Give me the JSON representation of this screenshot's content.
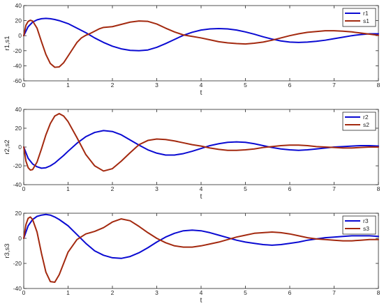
{
  "colors": {
    "r_series": "#0a0ad2",
    "s_series": "#a3290f",
    "axes": "#262626",
    "background": "#ffffff"
  },
  "chart_data": [
    {
      "type": "line",
      "xlabel": "t",
      "ylabel": "r1,s1",
      "xlim": [
        0,
        8
      ],
      "ylim": [
        -60,
        40
      ],
      "xticks": [
        0,
        1,
        2,
        3,
        4,
        5,
        6,
        7,
        8
      ],
      "yticks": [
        -60,
        -40,
        -20,
        0,
        20,
        40
      ],
      "grid": false,
      "legend_position": "top-right",
      "series": [
        {
          "name": "r1",
          "color": "#0a0ad2",
          "x": [
            0,
            0.1,
            0.2,
            0.3,
            0.4,
            0.5,
            0.6,
            0.7,
            0.8,
            1.0,
            1.2,
            1.4,
            1.6,
            1.8,
            2.0,
            2.2,
            2.4,
            2.6,
            2.8,
            3.0,
            3.2,
            3.4,
            3.6,
            3.8,
            4.0,
            4.2,
            4.4,
            4.6,
            4.8,
            5.0,
            5.2,
            5.4,
            5.6,
            5.8,
            6.0,
            6.2,
            6.4,
            6.6,
            6.8,
            7.0,
            7.2,
            7.4,
            7.6,
            7.8,
            8.0
          ],
          "y": [
            0,
            12,
            18,
            21,
            22.5,
            23,
            22.5,
            21.5,
            20,
            16,
            10,
            4,
            -3,
            -9,
            -14,
            -17.5,
            -19.5,
            -20,
            -19,
            -15.5,
            -10.5,
            -5,
            0.5,
            4.5,
            7.5,
            9,
            9.5,
            9,
            7.5,
            5,
            2,
            -1.5,
            -4.5,
            -7,
            -8.5,
            -9,
            -8.5,
            -7.5,
            -6,
            -4,
            -2,
            0,
            1.5,
            2.5,
            2.5
          ]
        },
        {
          "name": "s1",
          "color": "#a3290f",
          "x": [
            0,
            0.05,
            0.1,
            0.15,
            0.2,
            0.3,
            0.4,
            0.5,
            0.6,
            0.7,
            0.8,
            0.9,
            1.0,
            1.1,
            1.2,
            1.3,
            1.4,
            1.5,
            1.6,
            1.7,
            1.8,
            2.0,
            2.2,
            2.4,
            2.6,
            2.8,
            3.0,
            3.2,
            3.4,
            3.6,
            3.8,
            4.0,
            4.2,
            4.4,
            4.6,
            4.8,
            5.0,
            5.2,
            5.4,
            5.6,
            5.8,
            6.0,
            6.2,
            6.4,
            6.6,
            6.8,
            7.0,
            7.2,
            7.4,
            7.6,
            7.8,
            8.0
          ],
          "y": [
            0,
            14,
            19,
            20.5,
            19.5,
            10,
            -8,
            -25,
            -37,
            -42,
            -41.5,
            -36,
            -27,
            -18,
            -9,
            -3,
            0.5,
            3,
            6,
            9,
            11,
            12,
            15,
            18,
            19.5,
            19,
            15.5,
            10,
            5,
            1,
            -1,
            -3,
            -5.5,
            -8,
            -9.5,
            -10.5,
            -11,
            -10,
            -8.5,
            -6,
            -3,
            0,
            2.5,
            4.5,
            5.5,
            6.5,
            6.5,
            6,
            5,
            3.5,
            2,
            0.5
          ]
        }
      ]
    },
    {
      "type": "line",
      "xlabel": "t",
      "ylabel": "r2,s2",
      "xlim": [
        0,
        8
      ],
      "ylim": [
        -40,
        40
      ],
      "xticks": [
        0,
        1,
        2,
        3,
        4,
        5,
        6,
        7,
        8
      ],
      "yticks": [
        -40,
        -20,
        0,
        20,
        40
      ],
      "grid": false,
      "legend_position": "top-right",
      "series": [
        {
          "name": "r2",
          "color": "#0a0ad2",
          "x": [
            0,
            0.1,
            0.2,
            0.3,
            0.4,
            0.5,
            0.6,
            0.7,
            0.8,
            0.9,
            1.0,
            1.2,
            1.4,
            1.6,
            1.8,
            2.0,
            2.2,
            2.4,
            2.6,
            2.8,
            3.0,
            3.2,
            3.4,
            3.6,
            3.8,
            4.0,
            4.2,
            4.4,
            4.6,
            4.8,
            5.0,
            5.2,
            5.4,
            5.6,
            5.8,
            6.0,
            6.2,
            6.4,
            6.6,
            6.8,
            7.0,
            7.2,
            7.4,
            7.6,
            7.8,
            8.0
          ],
          "y": [
            0,
            -12,
            -18,
            -21,
            -22.5,
            -22,
            -20,
            -17,
            -13,
            -9,
            -4.5,
            4,
            11,
            15.5,
            17.5,
            16.5,
            13,
            7.5,
            2,
            -3,
            -6.5,
            -8.5,
            -8.5,
            -7,
            -4.5,
            -1.5,
            1.5,
            3.5,
            5,
            5.5,
            5,
            3.5,
            1.5,
            -0.5,
            -2,
            -3,
            -3.5,
            -3,
            -2,
            -1,
            0,
            0.5,
            1,
            1.5,
            1.5,
            1
          ]
        },
        {
          "name": "s2",
          "color": "#a3290f",
          "x": [
            0,
            0.05,
            0.1,
            0.15,
            0.2,
            0.3,
            0.4,
            0.5,
            0.6,
            0.7,
            0.8,
            0.9,
            1.0,
            1.2,
            1.4,
            1.6,
            1.8,
            2.0,
            2.2,
            2.4,
            2.6,
            2.8,
            3.0,
            3.2,
            3.4,
            3.6,
            3.8,
            4.0,
            4.2,
            4.4,
            4.6,
            4.8,
            5.0,
            5.2,
            5.4,
            5.6,
            5.8,
            6.0,
            6.2,
            6.4,
            6.6,
            6.8,
            7.0,
            7.2,
            7.4,
            7.6,
            7.8,
            8.0
          ],
          "y": [
            0,
            -15,
            -22,
            -24.5,
            -24,
            -16,
            -2,
            13,
            25,
            33,
            35.5,
            33,
            27,
            10,
            -8,
            -20,
            -25.5,
            -23,
            -15,
            -6,
            2.5,
            7,
            8.5,
            8,
            6.5,
            4.5,
            2.5,
            1,
            -1,
            -2.5,
            -3.5,
            -3.5,
            -3,
            -2,
            -0.5,
            0.5,
            1.5,
            2,
            2,
            1.5,
            0.5,
            0,
            -0.5,
            -1,
            -1,
            -0.5,
            0,
            0
          ]
        }
      ]
    },
    {
      "type": "line",
      "xlabel": "t",
      "ylabel": "r3,s3",
      "xlim": [
        0,
        8
      ],
      "ylim": [
        -40,
        20
      ],
      "xticks": [
        0,
        1,
        2,
        3,
        4,
        5,
        6,
        7,
        8
      ],
      "yticks": [
        -40,
        -20,
        0,
        20
      ],
      "grid": false,
      "legend_position": "top-right",
      "series": [
        {
          "name": "r3",
          "color": "#0a0ad2",
          "x": [
            0,
            0.1,
            0.2,
            0.3,
            0.4,
            0.5,
            0.6,
            0.7,
            0.8,
            1.0,
            1.2,
            1.4,
            1.6,
            1.8,
            2.0,
            2.2,
            2.4,
            2.6,
            2.8,
            3.0,
            3.2,
            3.4,
            3.6,
            3.8,
            4.0,
            4.2,
            4.4,
            4.6,
            4.8,
            5.0,
            5.2,
            5.4,
            5.6,
            5.8,
            6.0,
            6.2,
            6.4,
            6.6,
            6.8,
            7.0,
            7.2,
            7.4,
            7.6,
            7.8,
            8.0
          ],
          "y": [
            0,
            10,
            15,
            17.5,
            18.5,
            19,
            18.5,
            17,
            15,
            10,
            3,
            -4,
            -10,
            -13.5,
            -15.5,
            -16,
            -14.5,
            -11.5,
            -7.5,
            -3,
            1,
            4,
            6,
            6.5,
            6,
            4.5,
            2.5,
            0.5,
            -1.5,
            -3,
            -4,
            -5,
            -5.5,
            -5,
            -4,
            -3,
            -1.5,
            -0.5,
            0.5,
            1,
            1.5,
            2,
            2,
            2,
            1.5
          ]
        },
        {
          "name": "s3",
          "color": "#a3290f",
          "x": [
            0,
            0.05,
            0.1,
            0.15,
            0.2,
            0.3,
            0.4,
            0.5,
            0.6,
            0.7,
            0.8,
            0.9,
            1.0,
            1.2,
            1.4,
            1.6,
            1.8,
            2.0,
            2.2,
            2.4,
            2.6,
            2.8,
            3.0,
            3.2,
            3.4,
            3.6,
            3.8,
            4.0,
            4.2,
            4.4,
            4.6,
            4.8,
            5.0,
            5.2,
            5.4,
            5.6,
            5.8,
            6.0,
            6.2,
            6.4,
            6.6,
            6.8,
            7.0,
            7.2,
            7.4,
            7.6,
            7.8,
            8.0
          ],
          "y": [
            0,
            11,
            16,
            17,
            15,
            5,
            -12,
            -27,
            -34.5,
            -35,
            -29,
            -20,
            -11,
            -1,
            3.5,
            5.5,
            8.5,
            13,
            15.5,
            14,
            9.5,
            4.5,
            0,
            -3.5,
            -6,
            -7,
            -7,
            -6,
            -4.5,
            -3,
            -1,
            1,
            2.5,
            4,
            4.5,
            5,
            4.5,
            3.5,
            2,
            0.5,
            -0.5,
            -1,
            -1.5,
            -2,
            -2,
            -1.5,
            -1,
            -1
          ]
        }
      ]
    }
  ]
}
